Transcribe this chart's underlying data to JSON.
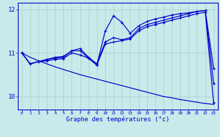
{
  "hours": [
    0,
    1,
    2,
    3,
    4,
    5,
    6,
    7,
    8,
    9,
    10,
    11,
    12,
    13,
    14,
    15,
    16,
    17,
    18,
    19,
    20,
    21,
    22,
    23
  ],
  "temp_main": [
    11.0,
    10.75,
    10.8,
    10.85,
    10.88,
    10.9,
    11.05,
    11.1,
    10.9,
    10.75,
    11.25,
    11.35,
    11.3,
    11.35,
    11.55,
    11.65,
    11.7,
    11.75,
    11.8,
    11.85,
    11.9,
    11.95,
    11.97,
    10.3
  ],
  "temp_high": [
    11.0,
    10.75,
    10.8,
    10.85,
    10.9,
    10.92,
    11.05,
    11.05,
    10.88,
    10.72,
    11.5,
    11.85,
    11.7,
    11.45,
    11.62,
    11.72,
    11.78,
    11.82,
    11.87,
    11.9,
    11.92,
    11.95,
    11.97,
    10.65
  ],
  "temp_low": [
    11.0,
    10.75,
    10.8,
    10.82,
    10.85,
    10.87,
    11.0,
    10.95,
    10.88,
    10.72,
    11.2,
    11.25,
    11.28,
    11.32,
    11.5,
    11.6,
    11.65,
    11.7,
    11.75,
    11.8,
    11.85,
    11.9,
    11.93,
    9.85
  ],
  "temp_trend": [
    11.0,
    10.9,
    10.82,
    10.75,
    10.68,
    10.62,
    10.56,
    10.5,
    10.45,
    10.4,
    10.35,
    10.3,
    10.25,
    10.2,
    10.15,
    10.1,
    10.05,
    10.0,
    9.97,
    9.93,
    9.9,
    9.87,
    9.84,
    9.82
  ],
  "xlabel": "Graphe des températures (°c)",
  "ylim": [
    9.7,
    12.15
  ],
  "xlim": [
    -0.5,
    23.5
  ],
  "yticks": [
    10,
    11,
    12
  ],
  "xticks": [
    0,
    1,
    2,
    3,
    4,
    5,
    6,
    7,
    8,
    9,
    10,
    11,
    12,
    13,
    14,
    15,
    16,
    17,
    18,
    19,
    20,
    21,
    22,
    23
  ],
  "line_color": "#0000cc",
  "bg_color": "#c8eaea",
  "grid_color": "#aad4d4",
  "marker": "+",
  "marker_size": 3,
  "linewidth": 0.9
}
